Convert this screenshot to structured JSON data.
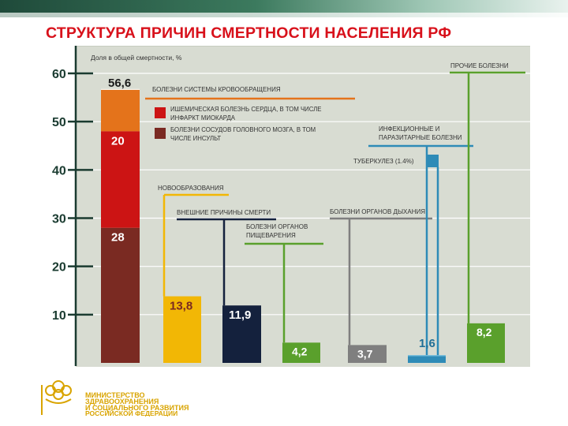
{
  "title": "СТРУКТУРА ПРИЧИН СМЕРТНОСТИ НАСЕЛЕНИЯ РФ",
  "chart_data": {
    "type": "bar",
    "ylabel": "Доля в общей смертности, %",
    "ylim": [
      0,
      60
    ],
    "yticks": [
      "60",
      "50",
      "40",
      "30",
      "20",
      "10"
    ],
    "ytick_values": [
      60,
      50,
      40,
      30,
      20,
      10
    ],
    "grid": true,
    "circulatory": {
      "label": "Болезни системы кровообращения",
      "total": 56.6,
      "total_label": "56,6",
      "segments": [
        {
          "name": "Болезни сосудов головного мозга, в том числе инсульт",
          "value": 28,
          "label": "28",
          "color": "#7a2a22"
        },
        {
          "name": "Ишемическая болезнь сердца, в том числе инфаркт миокарда",
          "value": 20,
          "label": "20",
          "color": "#cc1414"
        },
        {
          "name": "",
          "value": 8.6,
          "label": "",
          "color": "#e4731b"
        }
      ]
    },
    "legend": [
      {
        "line1": "Ишемическая болезнь сердца, в том числе",
        "line2": "инфаркт миокарда",
        "color": "#cc1414"
      },
      {
        "line1": "Болезни сосудов головного мозга, в том",
        "line2": "числе инсульт",
        "color": "#7a2a22"
      }
    ],
    "bars": [
      {
        "name": "Новообразования",
        "value": 13.8,
        "label": "13,8",
        "color": "#f2b705",
        "label_color": "#7a2a22"
      },
      {
        "name": "Внешние причины смерти",
        "value": 11.9,
        "label": "11,9",
        "color": "#14213d",
        "label_color": "#ffffff"
      },
      {
        "name_line1": "Болезни органов",
        "name_line2": "пищеварения",
        "value": 4.2,
        "label": "4,2",
        "color": "#5aa02c",
        "label_color": "#ffffff"
      },
      {
        "name": "Болезни органов дыхания",
        "value": 3.7,
        "label": "3,7",
        "color": "#7f7f7f",
        "label_color": "#ffffff"
      },
      {
        "name_line1": "Инфекционные и",
        "name_line2": "паразитарные болезни",
        "value": 1.6,
        "label": "1,6",
        "color": "#2e8bb7",
        "label_color": "#1f6e96",
        "sub": {
          "name": "Туберкулез (1.4%)",
          "value": 1.4,
          "color": "#2e8bb7"
        }
      },
      {
        "name": "Прочие болезни",
        "value": 8.2,
        "label": "8,2",
        "color": "#5aa02c",
        "label_color": "#ffffff"
      }
    ]
  },
  "logo": {
    "line1": "МИНИСТЕРСТВО",
    "line2": "ЗДРАВООХРАНЕНИЯ",
    "line3": "И СОЦИАЛЬНОГО РАЗВИТИЯ",
    "line4": "РОССИЙСКОЙ ФЕДЕРАЦИИ",
    "color": "#d9a400"
  }
}
